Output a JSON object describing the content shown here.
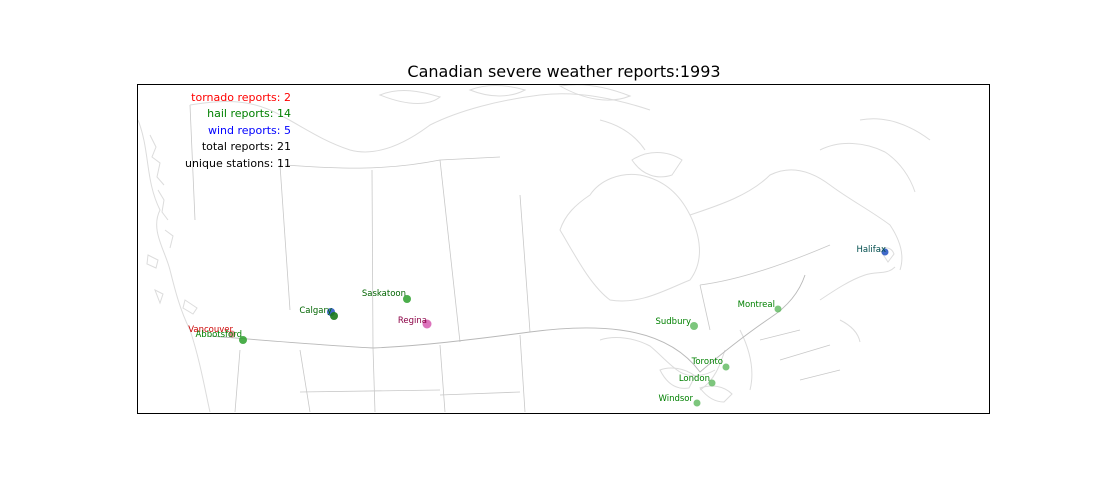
{
  "map": {
    "title": "Canadian severe weather reports:1993",
    "stats": [
      {
        "text": "tornado reports: 2",
        "color": "#ff0000"
      },
      {
        "text": "hail reports: 14",
        "color": "#008000"
      },
      {
        "text": "wind reports: 5",
        "color": "#0000ff"
      },
      {
        "text": "total reports: 21",
        "color": "#000000"
      },
      {
        "text": "unique stations: 11",
        "color": "#000000"
      }
    ],
    "colors": {
      "tornado": "#ff0000",
      "hail": "#008000",
      "wind": "#0000ff",
      "coast": "#dcdcdc",
      "border": "#c8c8c8"
    },
    "stations": [
      {
        "name": "Vancouver",
        "label_color": "#cc0000"
      },
      {
        "name": "Abbotsford",
        "label_color": "#008000"
      },
      {
        "name": "Calgary",
        "label_color": "#006400"
      },
      {
        "name": "Saskatoon",
        "label_color": "#006400"
      },
      {
        "name": "Regina",
        "label_color": "#8b0045"
      },
      {
        "name": "Sudbury",
        "label_color": "#008000"
      },
      {
        "name": "Montreal",
        "label_color": "#008000"
      },
      {
        "name": "Toronto",
        "label_color": "#008000"
      },
      {
        "name": "London",
        "label_color": "#008000"
      },
      {
        "name": "Windsor",
        "label_color": "#008000"
      },
      {
        "name": "Halifax",
        "label_color": "#004d4d"
      }
    ]
  }
}
